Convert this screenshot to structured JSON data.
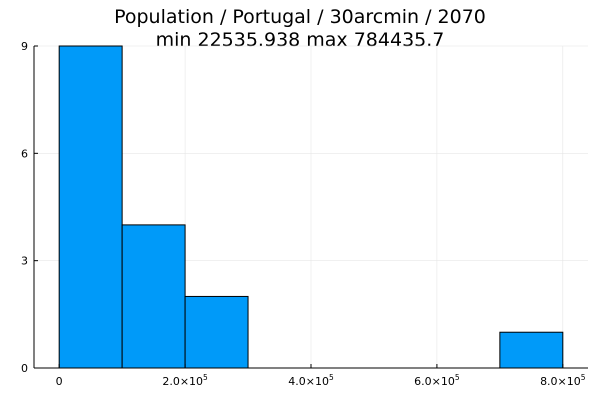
{
  "title_line1": "Population / Portugal / 30arcmin / 2070",
  "title_line2": "min 22535.938  max 784435.7",
  "colors": {
    "bar_fill": "#009af9",
    "bar_stroke": "#000000",
    "grid": "#e6e6e6",
    "axis": "#000000"
  },
  "chart_data": {
    "type": "bar",
    "title": "Population / Portugal / 30arcmin / 2070",
    "subtitle": "min 22535.938  max 784435.7",
    "xlabel": "",
    "ylabel": "",
    "bins": [
      {
        "x0": 0,
        "x1": 100000,
        "count": 9
      },
      {
        "x0": 100000,
        "x1": 200000,
        "count": 4
      },
      {
        "x0": 200000,
        "x1": 300000,
        "count": 2
      },
      {
        "x0": 300000,
        "x1": 400000,
        "count": 0
      },
      {
        "x0": 400000,
        "x1": 500000,
        "count": 0
      },
      {
        "x0": 500000,
        "x1": 600000,
        "count": 0
      },
      {
        "x0": 600000,
        "x1": 700000,
        "count": 0
      },
      {
        "x0": 700000,
        "x1": 800000,
        "count": 1
      }
    ],
    "xlim": [
      -40000,
      840000
    ],
    "ylim": [
      0,
      9
    ],
    "x_ticks": [
      {
        "value": 0,
        "mantissa": "0",
        "exp": ""
      },
      {
        "value": 200000,
        "mantissa": "2.0×10",
        "exp": "5"
      },
      {
        "value": 400000,
        "mantissa": "4.0×10",
        "exp": "5"
      },
      {
        "value": 600000,
        "mantissa": "6.0×10",
        "exp": "5"
      },
      {
        "value": 800000,
        "mantissa": "8.0×10",
        "exp": "5"
      }
    ],
    "y_ticks": [
      {
        "value": 0,
        "label": "0"
      },
      {
        "value": 3,
        "label": "3"
      },
      {
        "value": 6,
        "label": "6"
      },
      {
        "value": 9,
        "label": "9"
      }
    ],
    "grid": true,
    "legend": "none"
  }
}
